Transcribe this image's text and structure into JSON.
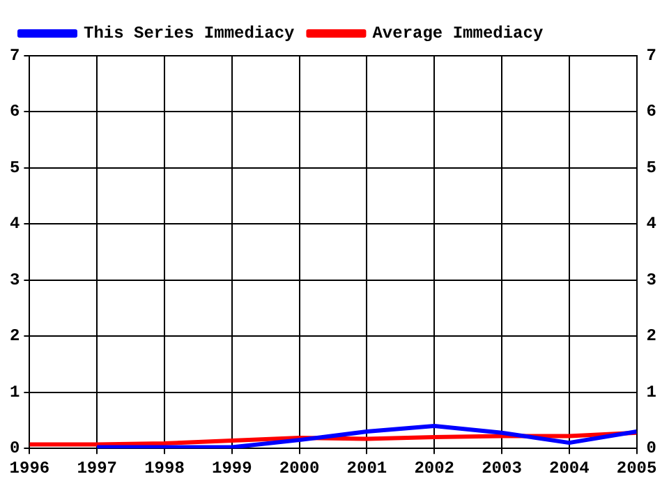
{
  "chart_data": {
    "type": "line",
    "x": [
      1996,
      1997,
      1998,
      1999,
      2000,
      2001,
      2002,
      2003,
      2004,
      2005
    ],
    "series": [
      {
        "name": "This Series Immediacy",
        "color": "#0000ff",
        "values": [
          null,
          0.02,
          0.02,
          0.02,
          0.15,
          0.3,
          0.4,
          0.28,
          0.1,
          0.3
        ]
      },
      {
        "name": "Average Immediacy",
        "color": "#ff0000",
        "values": [
          0.07,
          0.07,
          0.09,
          0.14,
          0.19,
          0.17,
          0.2,
          0.22,
          0.22,
          0.28
        ]
      }
    ],
    "xlim": [
      1996,
      2005
    ],
    "xticks": [
      1996,
      1997,
      1998,
      1999,
      2000,
      2001,
      2002,
      2003,
      2004,
      2005
    ],
    "ylim": [
      0,
      7
    ],
    "yticks": [
      0,
      1,
      2,
      3,
      4,
      5,
      6,
      7
    ],
    "y2lim": [
      0,
      7
    ],
    "y2ticks": [
      0,
      1,
      2,
      3,
      4,
      5,
      6,
      7
    ],
    "grid": true,
    "legend": "top left",
    "marker": "none",
    "line_style": "solid"
  }
}
